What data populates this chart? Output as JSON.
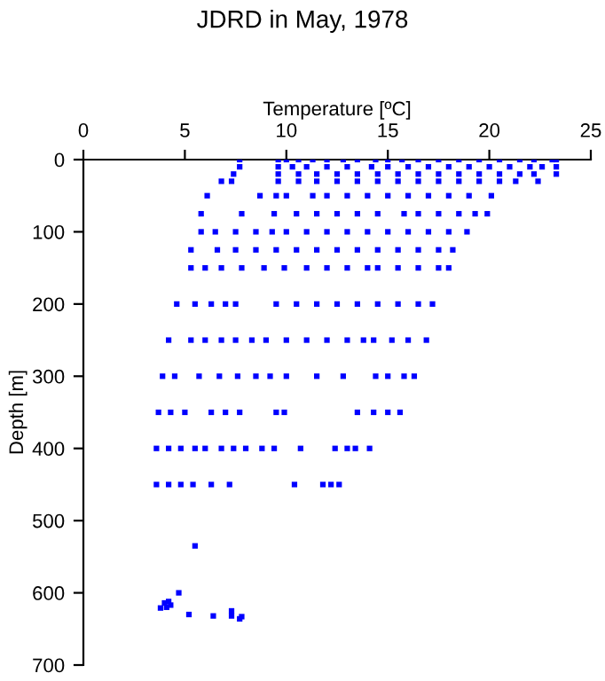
{
  "chart_data": {
    "type": "scatter",
    "title": "JDRD in May, 1978",
    "xlabel": "Temperature [ºC]",
    "ylabel": "Depth [m]",
    "xlim": [
      0,
      25
    ],
    "xticks": [
      0,
      5,
      10,
      15,
      20,
      25
    ],
    "ylim": [
      700,
      0
    ],
    "yticks": [
      0,
      100,
      200,
      300,
      400,
      500,
      600,
      700
    ],
    "grid": false,
    "legend": false,
    "marker": "square",
    "series": [
      {
        "color": "#0000ff",
        "x": [
          7.7,
          9.6,
          10.0,
          10.6,
          11.3,
          12.0,
          12.8,
          13.5,
          14.4,
          15.0,
          15.7,
          16.5,
          17.5,
          18.5,
          19.5,
          20.5,
          21.5,
          22.2,
          23.1,
          23.3,
          7.7,
          9.6,
          10.3,
          11.0,
          12.0,
          13.0,
          14.2,
          15.0,
          16.0,
          17.0,
          18.0,
          19.0,
          20.0,
          21.0,
          22.0,
          22.6,
          23.3,
          7.4,
          9.6,
          10.6,
          11.5,
          12.5,
          13.5,
          14.5,
          15.5,
          16.5,
          17.5,
          18.5,
          19.5,
          20.5,
          21.5,
          22.2,
          23.3,
          6.8,
          7.3,
          9.6,
          10.6,
          11.5,
          12.5,
          13.5,
          14.5,
          15.5,
          16.5,
          17.5,
          18.5,
          19.5,
          20.5,
          21.3,
          22.4,
          6.1,
          8.7,
          9.5,
          10.0,
          11.3,
          12.0,
          13.0,
          14.0,
          15.0,
          16.0,
          17.0,
          18.0,
          19.0,
          20.1,
          5.8,
          7.8,
          9.4,
          10.5,
          11.5,
          12.5,
          13.5,
          14.5,
          15.8,
          16.5,
          17.5,
          18.5,
          19.3,
          19.9,
          5.8,
          6.5,
          7.5,
          8.5,
          9.3,
          10.0,
          11.0,
          12.0,
          13.0,
          14.0,
          15.0,
          16.0,
          17.0,
          18.0,
          18.9,
          5.3,
          6.6,
          7.5,
          8.5,
          9.5,
          10.5,
          11.5,
          12.5,
          13.5,
          14.5,
          15.5,
          16.5,
          17.5,
          18.2,
          5.3,
          6.0,
          6.8,
          7.8,
          8.9,
          9.9,
          11.0,
          12.0,
          13.0,
          14.0,
          14.5,
          15.5,
          16.5,
          17.5,
          18.0,
          4.6,
          5.5,
          6.3,
          7.0,
          7.5,
          9.5,
          10.5,
          11.5,
          12.5,
          13.5,
          14.5,
          15.5,
          16.5,
          17.2,
          4.2,
          5.3,
          6.0,
          6.8,
          7.5,
          8.3,
          9.0,
          10.0,
          11.0,
          12.0,
          13.0,
          13.8,
          14.3,
          15.2,
          16.0,
          16.9,
          3.9,
          4.5,
          5.7,
          6.7,
          7.6,
          8.5,
          9.2,
          10.0,
          11.5,
          12.8,
          14.4,
          15.0,
          15.8,
          16.3,
          3.7,
          4.3,
          5.0,
          6.3,
          7.0,
          7.7,
          9.5,
          9.9,
          13.5,
          14.3,
          15.0,
          15.6,
          3.6,
          4.2,
          4.8,
          5.5,
          6.0,
          6.8,
          7.4,
          8.0,
          8.8,
          9.4,
          10.7,
          12.4,
          13.0,
          13.4,
          14.1,
          3.6,
          4.2,
          4.8,
          5.4,
          6.3,
          7.2,
          10.4,
          11.8,
          12.2,
          12.6,
          5.5,
          4.7,
          4.0,
          4.2,
          3.8,
          4.1,
          4.3,
          5.2,
          6.4,
          7.3,
          7.3,
          7.7,
          7.8
        ],
        "values": [
          0,
          0,
          0,
          0,
          0,
          0,
          0,
          0,
          0,
          0,
          0,
          0,
          0,
          0,
          0,
          0,
          0,
          0,
          0,
          0,
          10,
          10,
          10,
          10,
          10,
          10,
          10,
          10,
          10,
          10,
          10,
          10,
          10,
          10,
          10,
          10,
          10,
          20,
          20,
          20,
          20,
          20,
          20,
          20,
          20,
          20,
          20,
          20,
          20,
          20,
          20,
          20,
          20,
          30,
          30,
          30,
          30,
          30,
          30,
          30,
          30,
          30,
          30,
          30,
          30,
          30,
          30,
          30,
          30,
          50,
          50,
          50,
          50,
          50,
          50,
          50,
          50,
          50,
          50,
          50,
          50,
          50,
          50,
          75,
          75,
          75,
          75,
          75,
          75,
          75,
          75,
          75,
          75,
          75,
          75,
          75,
          75,
          100,
          100,
          100,
          100,
          100,
          100,
          100,
          100,
          100,
          100,
          100,
          100,
          100,
          100,
          100,
          125,
          125,
          125,
          125,
          125,
          125,
          125,
          125,
          125,
          125,
          125,
          125,
          125,
          125,
          150,
          150,
          150,
          150,
          150,
          150,
          150,
          150,
          150,
          150,
          150,
          150,
          150,
          150,
          150,
          200,
          200,
          200,
          200,
          200,
          200,
          200,
          200,
          200,
          200,
          200,
          200,
          200,
          200,
          250,
          250,
          250,
          250,
          250,
          250,
          250,
          250,
          250,
          250,
          250,
          250,
          250,
          250,
          250,
          250,
          300,
          300,
          300,
          300,
          300,
          300,
          300,
          300,
          300,
          300,
          300,
          300,
          300,
          300,
          350,
          350,
          350,
          350,
          350,
          350,
          350,
          350,
          350,
          350,
          350,
          350,
          400,
          400,
          400,
          400,
          400,
          400,
          400,
          400,
          400,
          400,
          400,
          400,
          400,
          400,
          400,
          450,
          450,
          450,
          450,
          450,
          450,
          450,
          450,
          450,
          450,
          535,
          600,
          614,
          612,
          621,
          620,
          617,
          630,
          632,
          625,
          632,
          636,
          633
        ]
      }
    ]
  }
}
